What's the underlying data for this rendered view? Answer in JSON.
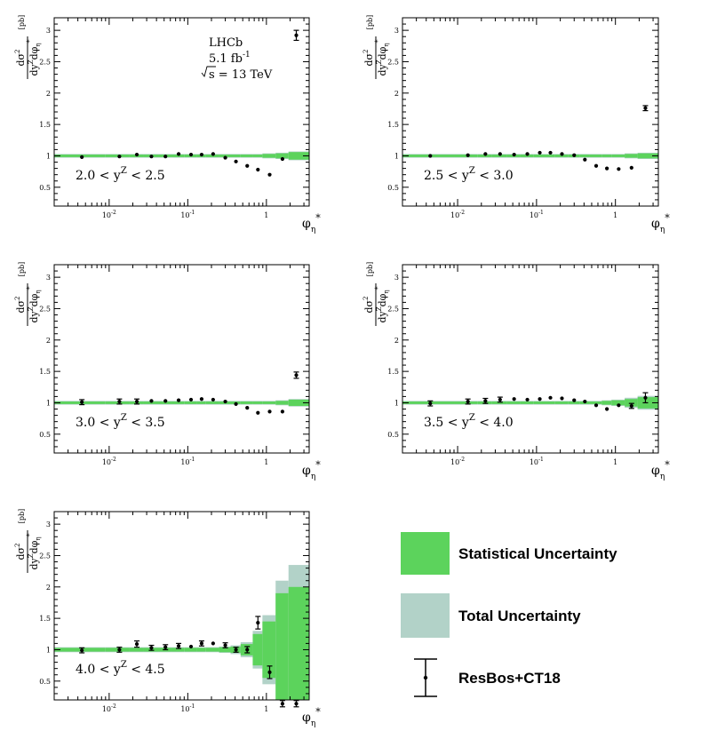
{
  "colors": {
    "stat": "#5cd35c",
    "total": "#b2d2c8",
    "points": "#000000"
  },
  "info": {
    "experiment": "LHCb",
    "lumi": "5.1 fb",
    "lumi_sup": "-1",
    "sqrt_s": "s = 13 TeV"
  },
  "axis": {
    "x_title": "φ",
    "x_sub": "η",
    "x_sup": "*",
    "x_tick_labels": [
      "10",
      "10",
      "1"
    ],
    "x_tick_exps": [
      "-2",
      "-1",
      ""
    ],
    "y_title_num": "dσ",
    "y_title_num_sup": "2",
    "y_title_den": "dy",
    "y_title_den_sup": "Z",
    "y_title_den2": "dφ",
    "y_title_den2_sub": "η",
    "y_title_den2_sup": "*",
    "y_units": "[pb]",
    "y_tick_labels": [
      "0.5",
      "1",
      "1.5",
      "2",
      "2.5",
      "3"
    ]
  },
  "legend": [
    {
      "key": "stat",
      "label": "Statistical Uncertainty"
    },
    {
      "key": "total",
      "label": "Total Uncertainty"
    },
    {
      "key": "points",
      "label": "ResBos+CT18"
    }
  ],
  "chart_data": [
    {
      "type": "scatter",
      "title": "",
      "range_label": "2.0 < y",
      "range_sup": "Z",
      "range_label_end": " < 2.5",
      "xscale": "log",
      "xlim": [
        0.002,
        3.5
      ],
      "ylim": [
        0.2,
        3.2
      ],
      "x": [
        0.0045,
        0.0135,
        0.0225,
        0.0345,
        0.052,
        0.0765,
        0.11,
        0.15,
        0.21,
        0.3,
        0.41,
        0.57,
        0.78,
        1.1,
        1.6,
        2.4
      ],
      "y": [
        0.98,
        0.99,
        1.02,
        0.99,
        0.99,
        1.03,
        1.02,
        1.02,
        1.03,
        0.97,
        0.91,
        0.84,
        0.78,
        0.7,
        0.95,
        2.92
      ],
      "yerr": [
        0.01,
        0.01,
        0.01,
        0.01,
        0.01,
        0.01,
        0.01,
        0.01,
        0.01,
        0.01,
        0.01,
        0.01,
        0.01,
        0.01,
        0.02,
        0.08
      ],
      "band_edges": [
        0.002,
        0.009,
        0.018,
        0.027,
        0.042,
        0.062,
        0.091,
        0.13,
        0.17,
        0.25,
        0.35,
        0.47,
        0.67,
        0.89,
        1.31,
        1.91,
        3.5
      ],
      "stat_halfwidth": [
        0.02,
        0.02,
        0.02,
        0.02,
        0.02,
        0.02,
        0.02,
        0.02,
        0.02,
        0.02,
        0.02,
        0.02,
        0.02,
        0.03,
        0.04,
        0.06
      ],
      "total_halfwidth": [
        0.03,
        0.03,
        0.03,
        0.03,
        0.03,
        0.03,
        0.03,
        0.03,
        0.03,
        0.03,
        0.03,
        0.03,
        0.03,
        0.04,
        0.05,
        0.07
      ]
    },
    {
      "type": "scatter",
      "title": "",
      "range_label": "2.5 < y",
      "range_sup": "Z",
      "range_label_end": " < 3.0",
      "xscale": "log",
      "xlim": [
        0.002,
        3.5
      ],
      "ylim": [
        0.2,
        3.2
      ],
      "x": [
        0.0045,
        0.0135,
        0.0225,
        0.0345,
        0.052,
        0.0765,
        0.11,
        0.15,
        0.21,
        0.3,
        0.41,
        0.57,
        0.78,
        1.1,
        1.6,
        2.4
      ],
      "y": [
        1.0,
        1.01,
        1.03,
        1.03,
        1.02,
        1.03,
        1.05,
        1.05,
        1.03,
        1.01,
        0.94,
        0.84,
        0.8,
        0.79,
        0.81,
        1.76
      ],
      "yerr": [
        0.01,
        0.01,
        0.01,
        0.01,
        0.01,
        0.01,
        0.01,
        0.01,
        0.01,
        0.01,
        0.01,
        0.01,
        0.01,
        0.01,
        0.02,
        0.04
      ],
      "band_edges": [
        0.002,
        0.009,
        0.018,
        0.027,
        0.042,
        0.062,
        0.091,
        0.13,
        0.17,
        0.25,
        0.35,
        0.47,
        0.67,
        0.89,
        1.31,
        1.91,
        3.5
      ],
      "stat_halfwidth": [
        0.02,
        0.02,
        0.02,
        0.02,
        0.02,
        0.02,
        0.02,
        0.02,
        0.02,
        0.02,
        0.02,
        0.02,
        0.02,
        0.02,
        0.03,
        0.04
      ],
      "total_halfwidth": [
        0.03,
        0.03,
        0.03,
        0.03,
        0.03,
        0.03,
        0.03,
        0.03,
        0.03,
        0.03,
        0.03,
        0.03,
        0.03,
        0.03,
        0.04,
        0.05
      ]
    },
    {
      "type": "scatter",
      "title": "",
      "range_label": "3.0 < y",
      "range_sup": "Z",
      "range_label_end": " < 3.5",
      "xscale": "log",
      "xlim": [
        0.002,
        3.5
      ],
      "ylim": [
        0.2,
        3.2
      ],
      "x": [
        0.0045,
        0.0135,
        0.0225,
        0.0345,
        0.052,
        0.0765,
        0.11,
        0.15,
        0.21,
        0.3,
        0.41,
        0.57,
        0.78,
        1.1,
        1.6,
        2.4
      ],
      "y": [
        1.01,
        1.02,
        1.02,
        1.03,
        1.03,
        1.04,
        1.05,
        1.06,
        1.05,
        1.02,
        0.98,
        0.92,
        0.84,
        0.86,
        0.86,
        1.44
      ],
      "yerr": [
        0.04,
        0.04,
        0.04,
        0.02,
        0.02,
        0.02,
        0.02,
        0.02,
        0.02,
        0.02,
        0.02,
        0.02,
        0.02,
        0.02,
        0.02,
        0.05
      ],
      "band_edges": [
        0.002,
        0.009,
        0.018,
        0.027,
        0.042,
        0.062,
        0.091,
        0.13,
        0.17,
        0.25,
        0.35,
        0.47,
        0.67,
        0.89,
        1.31,
        1.91,
        3.5
      ],
      "stat_halfwidth": [
        0.02,
        0.02,
        0.02,
        0.02,
        0.02,
        0.02,
        0.02,
        0.02,
        0.02,
        0.02,
        0.02,
        0.02,
        0.02,
        0.02,
        0.03,
        0.05
      ],
      "total_halfwidth": [
        0.03,
        0.03,
        0.03,
        0.03,
        0.03,
        0.03,
        0.03,
        0.03,
        0.03,
        0.03,
        0.03,
        0.03,
        0.03,
        0.03,
        0.04,
        0.06
      ]
    },
    {
      "type": "scatter",
      "title": "",
      "range_label": "3.5 < y",
      "range_sup": "Z",
      "range_label_end": " < 4.0",
      "xscale": "log",
      "xlim": [
        0.002,
        3.5
      ],
      "ylim": [
        0.2,
        3.2
      ],
      "x": [
        0.0045,
        0.0135,
        0.0225,
        0.0345,
        0.052,
        0.0765,
        0.11,
        0.15,
        0.21,
        0.3,
        0.41,
        0.57,
        0.78,
        1.1,
        1.6,
        2.4
      ],
      "y": [
        0.99,
        1.02,
        1.03,
        1.05,
        1.06,
        1.05,
        1.06,
        1.08,
        1.07,
        1.04,
        1.02,
        0.96,
        0.9,
        0.96,
        0.95,
        1.08
      ],
      "yerr": [
        0.04,
        0.04,
        0.04,
        0.04,
        0.02,
        0.02,
        0.02,
        0.02,
        0.02,
        0.02,
        0.02,
        0.02,
        0.02,
        0.02,
        0.04,
        0.08
      ],
      "band_edges": [
        0.002,
        0.009,
        0.018,
        0.027,
        0.042,
        0.062,
        0.091,
        0.13,
        0.17,
        0.25,
        0.35,
        0.47,
        0.67,
        0.89,
        1.31,
        1.91,
        3.5
      ],
      "stat_halfwidth": [
        0.02,
        0.02,
        0.02,
        0.02,
        0.02,
        0.02,
        0.02,
        0.02,
        0.02,
        0.02,
        0.02,
        0.02,
        0.03,
        0.04,
        0.06,
        0.09
      ],
      "total_halfwidth": [
        0.03,
        0.03,
        0.03,
        0.03,
        0.03,
        0.03,
        0.03,
        0.03,
        0.03,
        0.03,
        0.03,
        0.03,
        0.04,
        0.05,
        0.08,
        0.11
      ]
    },
    {
      "type": "scatter",
      "title": "",
      "range_label": "4.0 < y",
      "range_sup": "Z",
      "range_label_end": " < 4.5",
      "xscale": "log",
      "xlim": [
        0.002,
        3.5
      ],
      "ylim": [
        0.2,
        3.2
      ],
      "x": [
        0.0045,
        0.0135,
        0.0225,
        0.0345,
        0.052,
        0.0765,
        0.11,
        0.15,
        0.21,
        0.3,
        0.41,
        0.57,
        0.78,
        1.1,
        1.6,
        2.4
      ],
      "y": [
        0.99,
        1.0,
        1.09,
        1.03,
        1.04,
        1.06,
        1.05,
        1.1,
        1.1,
        1.07,
        1.0,
        1.0,
        1.43,
        0.64,
        0.14,
        0.14
      ],
      "yerr": [
        0.04,
        0.04,
        0.05,
        0.04,
        0.04,
        0.04,
        0.02,
        0.04,
        0.02,
        0.04,
        0.04,
        0.05,
        0.1,
        0.1,
        0.05,
        0.05
      ],
      "band_edges": [
        0.002,
        0.009,
        0.018,
        0.027,
        0.042,
        0.062,
        0.091,
        0.13,
        0.17,
        0.25,
        0.35,
        0.47,
        0.67,
        0.89,
        1.31,
        1.91,
        3.5
      ],
      "stat_halfwidth": [
        0.03,
        0.03,
        0.03,
        0.03,
        0.03,
        0.03,
        0.03,
        0.03,
        0.03,
        0.04,
        0.05,
        0.09,
        0.25,
        0.45,
        0.9,
        1.0
      ],
      "total_halfwidth": [
        0.04,
        0.04,
        0.04,
        0.04,
        0.04,
        0.04,
        0.04,
        0.04,
        0.04,
        0.05,
        0.07,
        0.12,
        0.3,
        0.55,
        1.1,
        1.35
      ]
    }
  ]
}
